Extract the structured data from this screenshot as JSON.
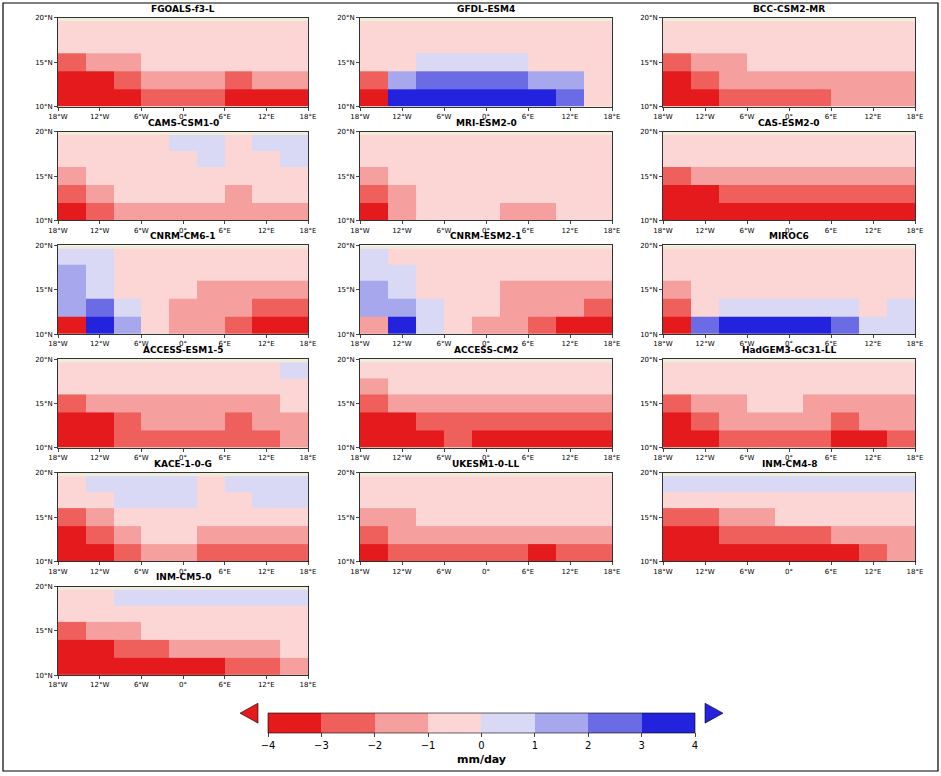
{
  "chart_data": {
    "type": "heatmap",
    "x": [
      -16,
      -12,
      -8,
      -4,
      0,
      4,
      8,
      12,
      16
    ],
    "y": [
      11,
      13,
      15,
      17,
      18.75
    ],
    "xlim": [
      -18,
      18
    ],
    "ylim": [
      10,
      20
    ],
    "xticks": [
      {
        "value": -18,
        "label": "18°W"
      },
      {
        "value": -12,
        "label": "12°W"
      },
      {
        "value": -6,
        "label": "6°W"
      },
      {
        "value": 0,
        "label": "0°"
      },
      {
        "value": 6,
        "label": "6°E"
      },
      {
        "value": 12,
        "label": "12°E"
      },
      {
        "value": 18,
        "label": "18°E"
      }
    ],
    "yticks": [
      {
        "value": 10,
        "label": "10°N"
      },
      {
        "value": 15,
        "label": "15°N"
      },
      {
        "value": 20,
        "label": "20°N"
      }
    ],
    "colorbar": {
      "title": "mm/day",
      "range": [
        -4,
        4
      ],
      "ticks": [
        {
          "value": -4,
          "label": "−4"
        },
        {
          "value": -3,
          "label": "−3"
        },
        {
          "value": -2,
          "label": "−2"
        },
        {
          "value": -1,
          "label": "−1"
        },
        0,
        1,
        2,
        3,
        4
      ],
      "colors": [
        "#e41a1c",
        "#ef5f5c",
        "#f5a09e",
        "#fbd6d5",
        "#d9d9f5",
        "#a7a7ee",
        "#6b6be6",
        "#2323dd"
      ]
    },
    "panels": [
      {
        "title": "FGOALS-f3-L",
        "z": [
          [
            -3.5,
            -3.5,
            -3.2,
            -2.5,
            -2.5,
            -2.5,
            -3.2,
            -3.2,
            -3.2
          ],
          [
            -3.5,
            -3.2,
            -2.2,
            -1.5,
            -1.5,
            -1.5,
            -2.2,
            -1.5,
            -1.5
          ],
          [
            -2.5,
            -1.5,
            -1.2,
            -0.5,
            -0.5,
            -0.5,
            -0.5,
            -0.5,
            -0.5
          ],
          [
            -0.5,
            -0.5,
            -0.5,
            -0.5,
            -0.5,
            -0.5,
            -0.5,
            -0.5,
            -0.5
          ],
          [
            -0.5,
            -0.5,
            -0.5,
            -0.5,
            -0.5,
            -0.5,
            -0.5,
            -0.5,
            -0.5
          ]
        ]
      },
      {
        "title": "GFDL-ESM4",
        "z": [
          [
            -3.2,
            3.2,
            3.5,
            3.5,
            3.5,
            3.5,
            3.5,
            2.5,
            -0.5
          ],
          [
            -2.2,
            1.5,
            2.2,
            2.2,
            2.2,
            2.2,
            1.5,
            1.2,
            -0.5
          ],
          [
            -0.5,
            -0.5,
            0.5,
            0.5,
            0.5,
            0.5,
            -0.5,
            -0.5,
            -0.5
          ],
          [
            -0.5,
            -0.5,
            -0.5,
            -0.5,
            -0.5,
            -0.5,
            -0.5,
            -0.5,
            -0.5
          ],
          [
            -0.5,
            -0.5,
            -0.5,
            -0.5,
            -0.5,
            -0.5,
            -0.5,
            -0.5,
            -0.5
          ]
        ]
      },
      {
        "title": "BCC-CSM2-MR",
        "z": [
          [
            -3.5,
            -3.2,
            -2.5,
            -2.2,
            -2.2,
            -2.5,
            -1.5,
            -1.5,
            -1.5
          ],
          [
            -3.2,
            -2.5,
            -1.5,
            -1.5,
            -1.5,
            -1.5,
            -1.5,
            -1.5,
            -1.5
          ],
          [
            -2.5,
            -1.5,
            -1.5,
            -0.5,
            -0.5,
            -0.5,
            -0.5,
            -0.5,
            -0.5
          ],
          [
            -0.5,
            -0.5,
            -0.5,
            -0.5,
            -0.5,
            -0.5,
            -0.5,
            -0.5,
            -0.5
          ],
          [
            -0.5,
            -0.5,
            -0.5,
            -0.5,
            -0.5,
            -0.5,
            -0.5,
            -0.5,
            -0.5
          ]
        ]
      },
      {
        "title": "CAMS-CSM1-0",
        "z": [
          [
            -3.5,
            -2.5,
            -1.5,
            -1.5,
            -1.5,
            -1.5,
            -1.5,
            -1.5,
            -1.5
          ],
          [
            -2.5,
            -1.5,
            -0.5,
            -0.5,
            -0.5,
            -0.5,
            -1.5,
            -0.5,
            -0.5
          ],
          [
            -1.5,
            -0.5,
            -0.5,
            -0.5,
            -0.5,
            -0.5,
            -0.5,
            -0.5,
            -0.5
          ],
          [
            -0.5,
            -0.5,
            -0.5,
            -0.5,
            -0.5,
            0.5,
            -0.5,
            -0.5,
            0.5
          ],
          [
            -0.5,
            -0.5,
            -0.5,
            -0.5,
            0.5,
            0.5,
            -0.5,
            0.5,
            0.5
          ]
        ]
      },
      {
        "title": "MRI-ESM2-0",
        "z": [
          [
            -3.5,
            -1.5,
            -0.5,
            -0.5,
            -0.5,
            -1.5,
            -1.5,
            -0.5,
            -0.5
          ],
          [
            -2.5,
            -1.5,
            -0.5,
            -0.5,
            -0.5,
            -0.5,
            -0.5,
            -0.5,
            -0.5
          ],
          [
            -1.5,
            -0.5,
            -0.5,
            -0.5,
            -0.5,
            -0.5,
            -0.5,
            -0.5,
            -0.5
          ],
          [
            -0.5,
            -0.5,
            -0.5,
            -0.5,
            -0.5,
            -0.5,
            -0.5,
            -0.5,
            -0.5
          ],
          [
            -0.5,
            -0.5,
            -0.5,
            -0.5,
            -0.5,
            -0.5,
            -0.5,
            -0.5,
            -0.5
          ]
        ]
      },
      {
        "title": "CAS-ESM2-0",
        "z": [
          [
            -3.5,
            -3.5,
            -3.5,
            -3.5,
            -3.5,
            -3.5,
            -3.5,
            -3.5,
            -3.5
          ],
          [
            -3.5,
            -3.2,
            -2.5,
            -2.5,
            -2.5,
            -2.5,
            -2.5,
            -2.5,
            -2.5
          ],
          [
            -2.5,
            -1.5,
            -1.5,
            -1.5,
            -1.5,
            -1.5,
            -1.5,
            -1.5,
            -1.5
          ],
          [
            -0.5,
            -0.5,
            -0.5,
            -0.5,
            -0.5,
            -0.5,
            -0.5,
            -0.5,
            -0.5
          ],
          [
            -0.5,
            -0.5,
            -0.5,
            -0.5,
            -0.5,
            -0.5,
            -0.5,
            -0.5,
            -0.5
          ]
        ]
      },
      {
        "title": "CNRM-CM6-1",
        "z": [
          [
            -3.2,
            3.5,
            1.5,
            -0.5,
            -1.5,
            -1.5,
            -2.5,
            -3.5,
            -3.5
          ],
          [
            1.5,
            2.5,
            0.5,
            -0.5,
            -1.5,
            -1.5,
            -1.5,
            -2.5,
            -2.5
          ],
          [
            1.5,
            0.5,
            -0.5,
            -0.5,
            -0.5,
            -1.5,
            -1.5,
            -1.5,
            -1.5
          ],
          [
            1.5,
            0.5,
            -0.5,
            -0.5,
            -0.5,
            -0.5,
            -0.5,
            -0.5,
            -0.5
          ],
          [
            0.5,
            0.5,
            -0.5,
            -0.5,
            -0.5,
            -0.5,
            -0.5,
            -0.5,
            -0.5
          ]
        ]
      },
      {
        "title": "CNRM-ESM2-1",
        "z": [
          [
            -1.5,
            3.5,
            0.5,
            -0.5,
            -1.5,
            -1.5,
            -2.5,
            -3.2,
            -3.5
          ],
          [
            1.5,
            1.5,
            0.5,
            -0.5,
            -0.5,
            -1.5,
            -1.5,
            -1.5,
            -2.5
          ],
          [
            1.5,
            0.5,
            -0.5,
            -0.5,
            -0.5,
            -1.5,
            -1.5,
            -1.5,
            -1.5
          ],
          [
            0.5,
            0.5,
            -0.5,
            -0.5,
            -0.5,
            -0.5,
            -0.5,
            -0.5,
            -0.5
          ],
          [
            0.5,
            -0.5,
            -0.5,
            -0.5,
            -0.5,
            -0.5,
            -0.5,
            -0.5,
            -0.5
          ]
        ]
      },
      {
        "title": "MIROC6",
        "z": [
          [
            -3.5,
            2.5,
            3.5,
            3.5,
            3.5,
            3.2,
            2.5,
            0.5,
            0.5
          ],
          [
            -2.5,
            -0.5,
            0.5,
            0.5,
            0.5,
            0.5,
            0.5,
            -0.5,
            0.5
          ],
          [
            -1.5,
            -0.5,
            -0.5,
            -0.5,
            -0.5,
            -0.5,
            -0.5,
            -0.5,
            -0.5
          ],
          [
            -0.5,
            -0.5,
            -0.5,
            -0.5,
            -0.5,
            -0.5,
            -0.5,
            -0.5,
            -0.5
          ],
          [
            -0.5,
            -0.5,
            -0.5,
            -0.5,
            -0.5,
            -0.5,
            -0.5,
            -0.5,
            -0.5
          ]
        ]
      },
      {
        "title": "ACCESS-ESM1-5",
        "z": [
          [
            -3.5,
            -3.5,
            -2.5,
            -2.5,
            -2.5,
            -2.5,
            -2.5,
            -2.5,
            -1.5
          ],
          [
            -3.5,
            -3.2,
            -2.5,
            -1.5,
            -1.5,
            -1.5,
            -2.5,
            -1.5,
            -1.5
          ],
          [
            -2.5,
            -1.5,
            -1.5,
            -1.5,
            -1.5,
            -1.5,
            -1.5,
            -1.5,
            -0.5
          ],
          [
            -0.5,
            -0.5,
            -0.5,
            -0.5,
            -0.5,
            -0.5,
            -0.5,
            -0.5,
            -0.5
          ],
          [
            -0.5,
            -0.5,
            -0.5,
            -0.5,
            -0.5,
            -0.5,
            -0.5,
            -0.5,
            0.5
          ]
        ]
      },
      {
        "title": "ACCESS-CM2",
        "z": [
          [
            -3.5,
            -3.5,
            -3.2,
            -2.5,
            -3.2,
            -3.2,
            -3.2,
            -3.2,
            -3.2
          ],
          [
            -3.5,
            -3.2,
            -2.5,
            -2.5,
            -2.5,
            -2.5,
            -2.5,
            -2.5,
            -2.5
          ],
          [
            -2.5,
            -1.5,
            -1.5,
            -1.5,
            -1.5,
            -1.5,
            -1.5,
            -1.5,
            -1.5
          ],
          [
            -1.5,
            -0.5,
            -0.5,
            -0.5,
            -0.5,
            -0.5,
            -0.5,
            -0.5,
            -0.5
          ],
          [
            -0.5,
            -0.5,
            -0.5,
            -0.5,
            -0.5,
            -0.5,
            -0.5,
            -0.5,
            -0.5
          ]
        ]
      },
      {
        "title": "HadGEM3-GC31-LL",
        "z": [
          [
            -3.5,
            -3.2,
            -2.5,
            -2.5,
            -2.5,
            -2.5,
            -3.2,
            -3.2,
            -2.5
          ],
          [
            -3.2,
            -2.5,
            -1.5,
            -1.5,
            -1.5,
            -1.5,
            -2.5,
            -1.5,
            -1.5
          ],
          [
            -2.5,
            -1.5,
            -1.5,
            -0.5,
            -0.5,
            -1.5,
            -1.5,
            -1.5,
            -1.5
          ],
          [
            -0.5,
            -0.5,
            -0.5,
            -0.5,
            -0.5,
            -0.5,
            -0.5,
            -0.5,
            -0.5
          ],
          [
            -0.5,
            -0.5,
            -0.5,
            -0.5,
            -0.5,
            -0.5,
            -0.5,
            -0.5,
            -0.5
          ]
        ]
      },
      {
        "title": "KACE-1-0-G",
        "z": [
          [
            -3.5,
            -3.5,
            -2.5,
            -1.5,
            -1.5,
            -2.5,
            -2.5,
            -2.5,
            -2.5
          ],
          [
            -3.5,
            -2.5,
            -1.5,
            -0.5,
            -0.5,
            -1.5,
            -1.5,
            -1.5,
            -1.5
          ],
          [
            -2.5,
            -1.5,
            -0.5,
            -0.5,
            -0.5,
            -0.5,
            -0.5,
            -0.5,
            -0.5
          ],
          [
            -0.5,
            -0.5,
            0.5,
            0.5,
            0.5,
            -0.5,
            -0.5,
            0.5,
            0.5
          ],
          [
            -0.5,
            0.5,
            0.5,
            0.5,
            0.5,
            -0.5,
            0.5,
            0.5,
            0.5
          ]
        ]
      },
      {
        "title": "UKESM1-0-LL",
        "z": [
          [
            -3.2,
            -2.5,
            -2.5,
            -2.5,
            -2.5,
            -2.5,
            -3.2,
            -2.5,
            -2.5
          ],
          [
            -2.5,
            -1.5,
            -1.5,
            -1.5,
            -1.5,
            -1.5,
            -1.5,
            -1.5,
            -1.5
          ],
          [
            -1.5,
            -1.5,
            -0.5,
            -0.5,
            -0.5,
            -0.5,
            -0.5,
            -0.5,
            -0.5
          ],
          [
            -0.5,
            -0.5,
            -0.5,
            -0.5,
            -0.5,
            -0.5,
            -0.5,
            -0.5,
            -0.5
          ],
          [
            -0.5,
            -0.5,
            -0.5,
            -0.5,
            -0.5,
            -0.5,
            -0.5,
            -0.5,
            -0.5
          ]
        ]
      },
      {
        "title": "INM-CM4-8",
        "z": [
          [
            -3.5,
            -3.5,
            -3.5,
            -3.5,
            -3.2,
            -3.2,
            -3.2,
            -2.5,
            -1.5
          ],
          [
            -3.5,
            -3.2,
            -2.5,
            -2.5,
            -2.5,
            -2.2,
            -1.5,
            -1.5,
            -1.5
          ],
          [
            -2.5,
            -2.5,
            -1.5,
            -1.5,
            -0.5,
            -0.5,
            -0.5,
            -0.5,
            -0.5
          ],
          [
            -0.5,
            -0.5,
            -0.5,
            -0.5,
            -0.5,
            -0.5,
            -0.5,
            -0.5,
            -0.5
          ],
          [
            0.5,
            0.5,
            0.5,
            0.5,
            0.5,
            0.5,
            0.5,
            0.5,
            0.5
          ]
        ]
      },
      {
        "title": "INM-CM5-0",
        "z": [
          [
            -3.5,
            -3.5,
            -3.5,
            -3.2,
            -3.2,
            -3.2,
            -2.5,
            -2.5,
            -1.5
          ],
          [
            -3.5,
            -3.2,
            -2.5,
            -2.2,
            -1.5,
            -1.5,
            -1.5,
            -1.5,
            -0.5
          ],
          [
            -2.5,
            -1.5,
            -1.5,
            -0.5,
            -0.5,
            -0.5,
            -0.5,
            -0.5,
            -0.5
          ],
          [
            -0.5,
            -0.5,
            -0.5,
            -0.5,
            -0.5,
            -0.5,
            -0.5,
            -0.5,
            -0.5
          ],
          [
            -0.5,
            -0.5,
            0.5,
            0.5,
            0.5,
            0.5,
            0.5,
            0.5,
            0.5
          ]
        ]
      }
    ]
  }
}
